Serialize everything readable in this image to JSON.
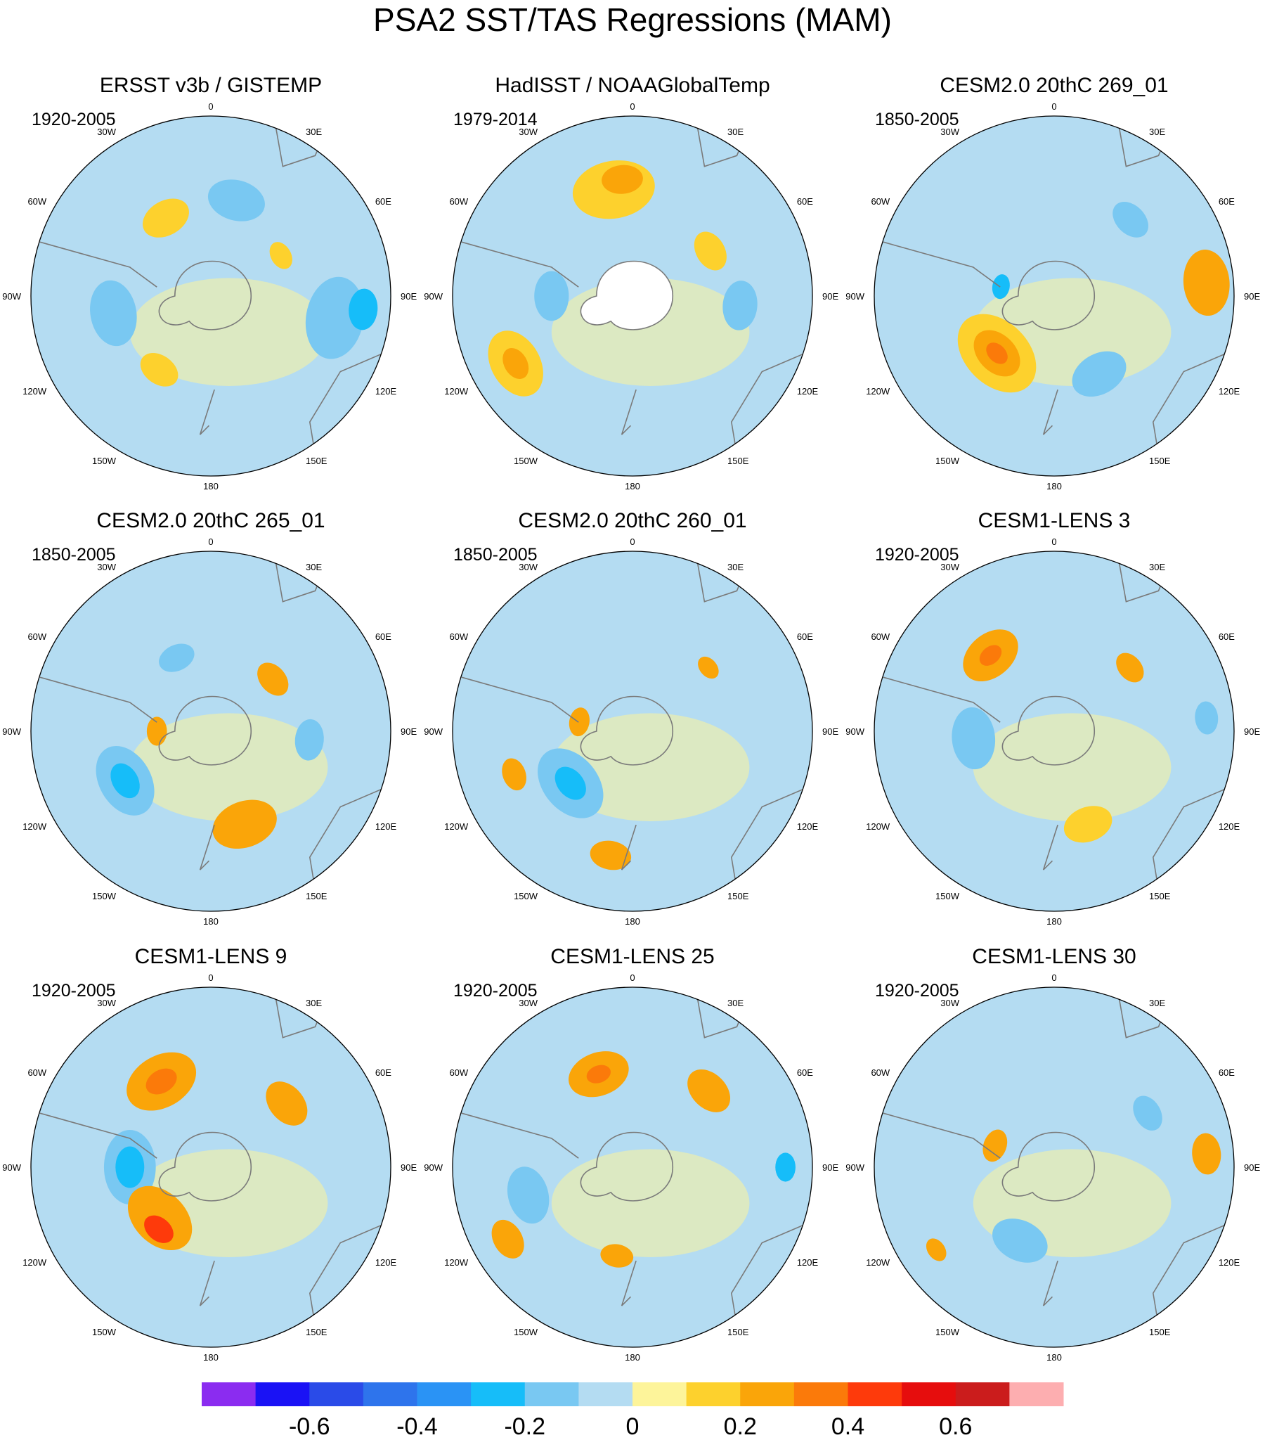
{
  "chart_data": {
    "type": "polar-stereographic contour map panels",
    "title": "PSA2 SST/TAS Regressions (MAM)",
    "lon_labels": [
      "0",
      "30E",
      "60E",
      "90E",
      "120E",
      "150E",
      "180",
      "150W",
      "120W",
      "90W",
      "60W",
      "30W"
    ],
    "panels": [
      {
        "title": "ERSST v3b / GISTEMP",
        "period": "1920-2005",
        "anomalies": [
          {
            "lon": 15,
            "r": 0.55,
            "level": -0.2,
            "size": 0.14
          },
          {
            "lon": 100,
            "r": 0.7,
            "level": -0.2,
            "size": 0.2
          },
          {
            "lon": 95,
            "r": 0.85,
            "level": -0.3,
            "size": 0.1
          },
          {
            "lon": 260,
            "r": 0.55,
            "level": -0.2,
            "size": 0.16
          },
          {
            "lon": 215,
            "r": 0.5,
            "level": 0.1,
            "size": 0.1
          },
          {
            "lon": 330,
            "r": 0.5,
            "level": 0.1,
            "size": 0.12
          },
          {
            "lon": 60,
            "r": 0.45,
            "level": 0.1,
            "size": 0.07
          }
        ]
      },
      {
        "title": "HadISST / NOAAGlobalTemp",
        "period": "1979-2014",
        "anomalies": [
          {
            "lon": 350,
            "r": 0.6,
            "level": 0.1,
            "size": 0.2
          },
          {
            "lon": 355,
            "r": 0.65,
            "level": 0.2,
            "size": 0.1
          },
          {
            "lon": 240,
            "r": 0.75,
            "level": 0.1,
            "size": 0.17
          },
          {
            "lon": 240,
            "r": 0.75,
            "level": 0.2,
            "size": 0.08
          },
          {
            "lon": 270,
            "r": 0.45,
            "level": -0.2,
            "size": 0.12
          },
          {
            "lon": 95,
            "r": 0.6,
            "level": -0.2,
            "size": 0.12
          },
          {
            "lon": 60,
            "r": 0.5,
            "level": 0.1,
            "size": 0.1
          }
        ]
      },
      {
        "title": "CESM2.0 20thC 269_01",
        "period": "1850-2005",
        "anomalies": [
          {
            "lon": 225,
            "r": 0.45,
            "level": 0.1,
            "size": 0.22
          },
          {
            "lon": 225,
            "r": 0.45,
            "level": 0.2,
            "size": 0.13
          },
          {
            "lon": 225,
            "r": 0.45,
            "level": 0.3,
            "size": 0.06
          },
          {
            "lon": 85,
            "r": 0.85,
            "level": 0.2,
            "size": 0.16
          },
          {
            "lon": 150,
            "r": 0.5,
            "level": -0.2,
            "size": 0.14
          },
          {
            "lon": 280,
            "r": 0.3,
            "level": -0.3,
            "size": 0.06
          },
          {
            "lon": 45,
            "r": 0.6,
            "level": -0.2,
            "size": 0.1
          }
        ]
      },
      {
        "title": "CESM2.0 20thC 265_01",
        "period": "1850-2005",
        "anomalies": [
          {
            "lon": 240,
            "r": 0.55,
            "level": -0.2,
            "size": 0.18
          },
          {
            "lon": 240,
            "r": 0.55,
            "level": -0.3,
            "size": 0.09
          },
          {
            "lon": 160,
            "r": 0.55,
            "level": 0.2,
            "size": 0.16
          },
          {
            "lon": 50,
            "r": 0.45,
            "level": 0.2,
            "size": 0.09
          },
          {
            "lon": 270,
            "r": 0.3,
            "level": 0.2,
            "size": 0.07
          },
          {
            "lon": 95,
            "r": 0.55,
            "level": -0.2,
            "size": 0.1
          },
          {
            "lon": 335,
            "r": 0.45,
            "level": -0.2,
            "size": 0.09
          }
        ]
      },
      {
        "title": "CESM2.0 20thC 260_01",
        "period": "1850-2005",
        "anomalies": [
          {
            "lon": 230,
            "r": 0.45,
            "level": -0.2,
            "size": 0.19
          },
          {
            "lon": 230,
            "r": 0.45,
            "level": -0.3,
            "size": 0.09
          },
          {
            "lon": 190,
            "r": 0.7,
            "level": 0.2,
            "size": 0.1
          },
          {
            "lon": 280,
            "r": 0.3,
            "level": 0.2,
            "size": 0.07
          },
          {
            "lon": 50,
            "r": 0.55,
            "level": 0.2,
            "size": 0.06
          },
          {
            "lon": 250,
            "r": 0.7,
            "level": 0.2,
            "size": 0.08
          }
        ]
      },
      {
        "title": "CESM1-LENS 3",
        "period": "1920-2005",
        "anomalies": [
          {
            "lon": 320,
            "r": 0.55,
            "level": 0.2,
            "size": 0.15
          },
          {
            "lon": 320,
            "r": 0.55,
            "level": 0.3,
            "size": 0.06
          },
          {
            "lon": 265,
            "r": 0.45,
            "level": -0.2,
            "size": 0.15
          },
          {
            "lon": 50,
            "r": 0.55,
            "level": 0.2,
            "size": 0.08
          },
          {
            "lon": 85,
            "r": 0.85,
            "level": -0.2,
            "size": 0.08
          },
          {
            "lon": 160,
            "r": 0.55,
            "level": 0.1,
            "size": 0.12
          }
        ]
      },
      {
        "title": "CESM1-LENS 9",
        "period": "1920-2005",
        "anomalies": [
          {
            "lon": 330,
            "r": 0.55,
            "level": 0.2,
            "size": 0.18
          },
          {
            "lon": 330,
            "r": 0.55,
            "level": 0.3,
            "size": 0.08
          },
          {
            "lon": 270,
            "r": 0.45,
            "level": -0.2,
            "size": 0.18
          },
          {
            "lon": 270,
            "r": 0.45,
            "level": -0.3,
            "size": 0.1
          },
          {
            "lon": 225,
            "r": 0.4,
            "level": 0.2,
            "size": 0.18
          },
          {
            "lon": 220,
            "r": 0.45,
            "level": 0.4,
            "size": 0.08
          },
          {
            "lon": 50,
            "r": 0.55,
            "level": 0.2,
            "size": 0.12
          }
        ]
      },
      {
        "title": "CESM1-LENS 25",
        "period": "1920-2005",
        "anomalies": [
          {
            "lon": 340,
            "r": 0.55,
            "level": 0.2,
            "size": 0.15
          },
          {
            "lon": 340,
            "r": 0.55,
            "level": 0.3,
            "size": 0.06
          },
          {
            "lon": 255,
            "r": 0.6,
            "level": -0.2,
            "size": 0.14
          },
          {
            "lon": 45,
            "r": 0.6,
            "level": 0.2,
            "size": 0.12
          },
          {
            "lon": 90,
            "r": 0.85,
            "level": -0.3,
            "size": 0.07
          },
          {
            "lon": 190,
            "r": 0.5,
            "level": 0.2,
            "size": 0.08
          },
          {
            "lon": 240,
            "r": 0.8,
            "level": 0.2,
            "size": 0.1
          }
        ]
      },
      {
        "title": "CESM1-LENS 30",
        "period": "1920-2005",
        "anomalies": [
          {
            "lon": 205,
            "r": 0.45,
            "level": -0.2,
            "size": 0.14
          },
          {
            "lon": 290,
            "r": 0.35,
            "level": 0.2,
            "size": 0.08
          },
          {
            "lon": 85,
            "r": 0.85,
            "level": 0.2,
            "size": 0.1
          },
          {
            "lon": 60,
            "r": 0.6,
            "level": -0.2,
            "size": 0.09
          },
          {
            "lon": 235,
            "r": 0.8,
            "level": 0.2,
            "size": 0.06
          }
        ]
      }
    ],
    "colorbar": {
      "colors": [
        "#8b2cf0",
        "#1a12f5",
        "#2a4be8",
        "#2e74ec",
        "#2a93f5",
        "#16bdf9",
        "#79c8f2",
        "#b4dcf2",
        "#fdf49a",
        "#fdd12d",
        "#faa509",
        "#fb7a0a",
        "#fe3a0b",
        "#e60d0d",
        "#cb1c1c",
        "#fdaeb0"
      ],
      "tick_labels": [
        "-0.6",
        "-0.4",
        "-0.2",
        "0",
        "0.2",
        "0.4",
        "0.6"
      ],
      "tick_values": [
        -0.6,
        -0.4,
        -0.2,
        0,
        0.2,
        0.4,
        0.6
      ],
      "range": [
        -0.8,
        0.8
      ]
    }
  }
}
